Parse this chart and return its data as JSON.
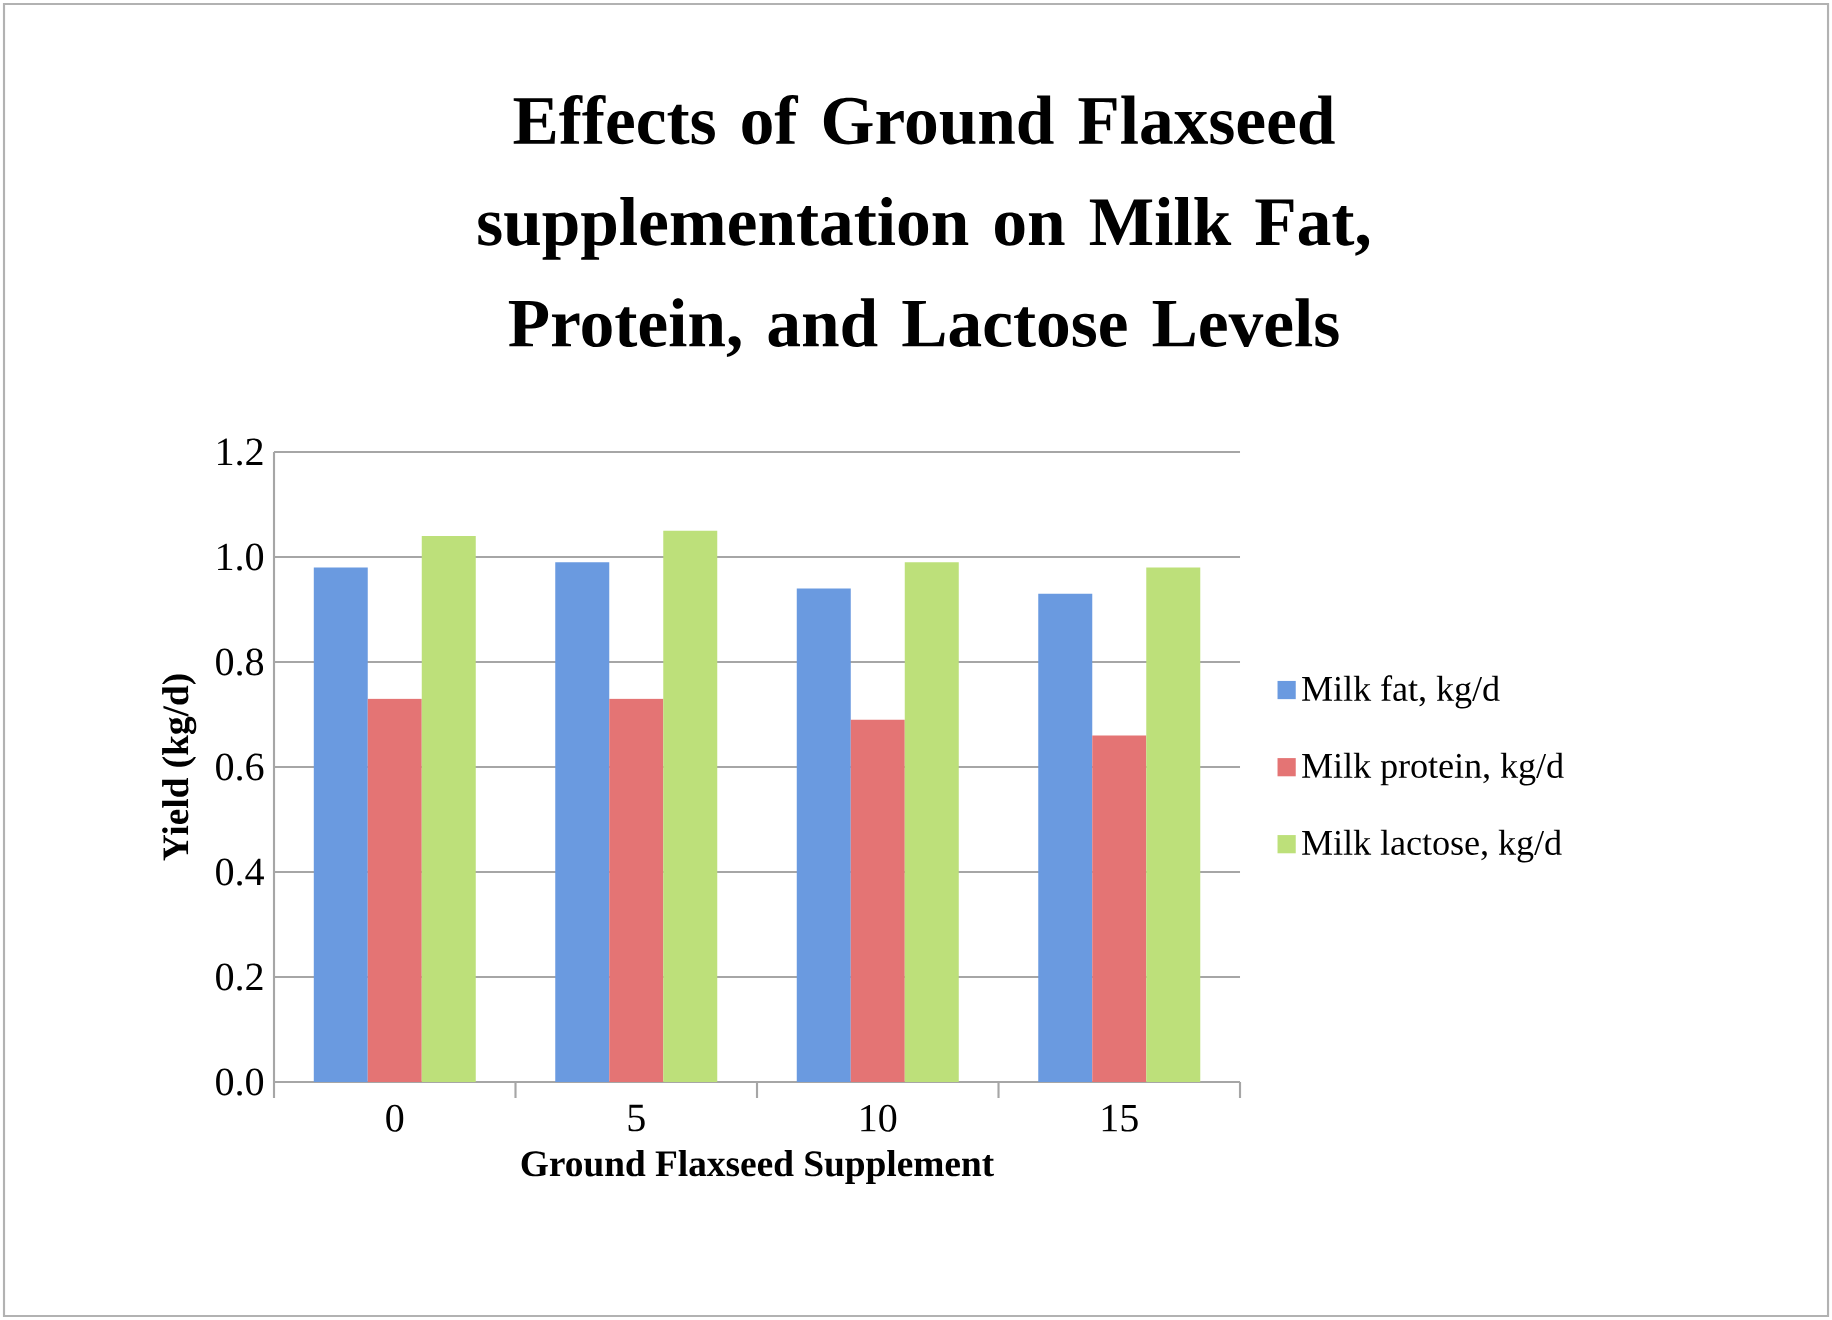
{
  "chart_data": {
    "type": "bar",
    "title": "Effects of Ground Flaxseed supplementation on Milk Fat, Protein, and Lactose Levels",
    "xlabel": "Ground Flaxseed Supplement",
    "ylabel": "Yield (kg/d)",
    "categories": [
      "0",
      "5",
      "10",
      "15"
    ],
    "series": [
      {
        "name": "Milk fat, kg/d",
        "color": "#6a9ae0",
        "values": [
          0.98,
          0.99,
          0.94,
          0.93
        ]
      },
      {
        "name": "Milk protein, kg/d",
        "color": "#e47474",
        "values": [
          0.73,
          0.73,
          0.69,
          0.66
        ]
      },
      {
        "name": "Milk lactose, kg/d",
        "color": "#bde07a",
        "values": [
          1.04,
          1.05,
          0.99,
          0.98
        ]
      }
    ],
    "ylim": [
      0,
      1.2
    ],
    "yticks": [
      {
        "value": 0,
        "label": "0.0"
      },
      {
        "value": 0.2,
        "label": "0.2"
      },
      {
        "value": 0.4,
        "label": "0.4"
      },
      {
        "value": 0.6,
        "label": "0.6"
      },
      {
        "value": 0.8,
        "label": "0.8"
      },
      {
        "value": 1.0,
        "label": "1.0"
      },
      {
        "value": 1.2,
        "label": "1.2"
      }
    ],
    "grid": "y",
    "legend": "right"
  }
}
